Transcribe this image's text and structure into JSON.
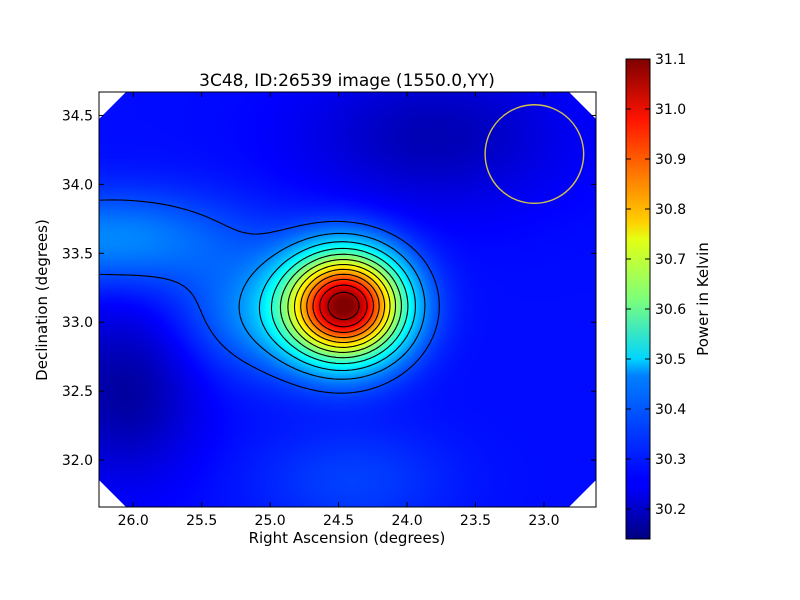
{
  "chart_data": {
    "type": "heatmap",
    "title": "3C48, ID:26539 image (1550.0,YY)",
    "xlabel": "Right Ascension (degrees)",
    "ylabel": "Declination (degrees)",
    "xlim": [
      26.25,
      22.62
    ],
    "ylim": [
      31.66,
      34.67
    ],
    "x_ticks": [
      "26.0",
      "25.5",
      "25.0",
      "24.5",
      "24.0",
      "23.5",
      "23.0"
    ],
    "y_ticks": [
      "32.0",
      "32.5",
      "33.0",
      "33.5",
      "34.0",
      "34.5"
    ],
    "colorbar": {
      "label": "Power in Kelvin",
      "min": 30.14,
      "max": 31.1,
      "ticks": [
        "30.2",
        "30.3",
        "30.4",
        "30.5",
        "30.6",
        "30.7",
        "30.8",
        "30.9",
        "31.0",
        "31.1"
      ],
      "colormap": "jet"
    },
    "peak": {
      "ra": 24.45,
      "dec": 33.12,
      "value": 31.08
    },
    "beam_circle": {
      "ra": 23.07,
      "dec": 34.22,
      "radius_deg": 0.36,
      "color": "#d4c24a"
    },
    "contour_color": "#000000"
  }
}
